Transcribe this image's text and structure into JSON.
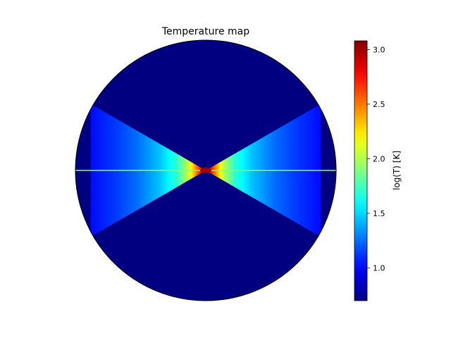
{
  "chart_data": {
    "type": "heatmap",
    "title": "Temperature map",
    "projection": "polar",
    "quantity": "log(T)",
    "colormap": "jet",
    "grid": false,
    "colorbar": {
      "label": "log(T) [K]",
      "range": [
        0.7,
        3.08
      ],
      "ticks": [
        {
          "value": 1.0,
          "label": "1.0"
        },
        {
          "value": 1.5,
          "label": "1.5"
        },
        {
          "value": 2.0,
          "label": "2.0"
        },
        {
          "value": 2.5,
          "label": "2.5"
        },
        {
          "value": 3.0,
          "label": "3.0"
        }
      ]
    },
    "background_value": 0.7,
    "wedge_half_angle_deg": 30,
    "radial_profile": [
      {
        "r": 0.0,
        "value": 3.0
      },
      {
        "r": 0.03,
        "value": 2.85
      },
      {
        "r": 0.08,
        "value": 2.5
      },
      {
        "r": 0.15,
        "value": 2.05
      },
      {
        "r": 0.25,
        "value": 1.7
      },
      {
        "r": 0.4,
        "value": 1.45
      },
      {
        "r": 0.6,
        "value": 1.25
      },
      {
        "r": 0.8,
        "value": 1.12
      },
      {
        "r": 1.0,
        "value": 1.02
      }
    ]
  }
}
